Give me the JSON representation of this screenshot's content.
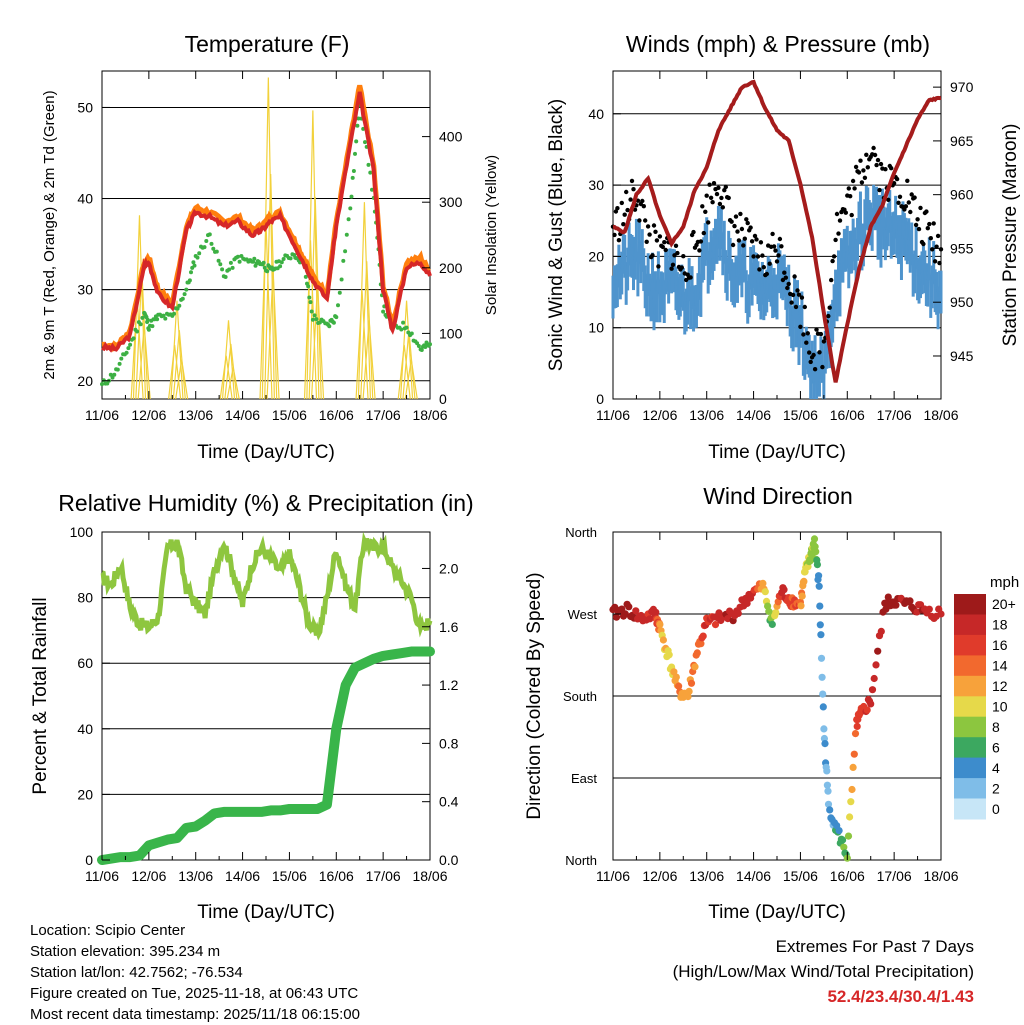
{
  "days": [
    "11/06",
    "12/06",
    "13/06",
    "14/06",
    "15/06",
    "16/06",
    "17/06",
    "18/06"
  ],
  "xlabel": "Time (Day/UTC)",
  "station": {
    "location": "Location: Scipio Center",
    "elevation": "Station elevation: 395.234 m",
    "latlon": "Station lat/lon: 42.7562; -76.534",
    "created": "Figure created on Tue, 2025-11-18, at 06:43 UTC",
    "recent": "Most recent data timestamp: 2025/11/18 06:15:00"
  },
  "extremes": {
    "title": "Extremes For Past 7 Days",
    "subtitle": "(High/Low/Max Wind/Total Precipitation)",
    "values": "52.4/23.4/30.4/1.43"
  },
  "colors": {
    "red": "#d62728",
    "orange": "#ff7f0e",
    "green": "#3cb043",
    "yellow": "#f2d13b",
    "blue": "#4f94cd",
    "black": "#000000",
    "maroon": "#a51c1c",
    "lightgreen": "#8ec63f",
    "darkgreen": "#39b54a"
  },
  "chart_data": [
    {
      "type": "line",
      "title": "Temperature (F)",
      "xlabel": "Time (Day/UTC)",
      "ylabel": "2m & 9m T (Red, Orange) & 2m Td (Green)",
      "y2label": "Solar Insolation (Yellow)",
      "ylim": [
        18,
        54
      ],
      "yticks": [
        20,
        30,
        40,
        50
      ],
      "y2lim": [
        0,
        500
      ],
      "y2ticks": [
        0,
        100,
        200,
        300,
        400
      ],
      "x": [
        0,
        0.3,
        0.6,
        0.9,
        1.0,
        1.2,
        1.5,
        1.8,
        2.0,
        2.3,
        2.6,
        2.9,
        3.2,
        3.4,
        3.6,
        3.8,
        4.1,
        4.3,
        4.5,
        4.8,
        5.0,
        5.3,
        5.5,
        5.8,
        6.0,
        6.2,
        6.5,
        6.8,
        7.0
      ],
      "series": [
        {
          "name": "2m T",
          "values": [
            23.7,
            23.5,
            25,
            32.5,
            33,
            29.5,
            28,
            36.5,
            38.5,
            38,
            37,
            37.5,
            36,
            36.5,
            37.5,
            38,
            35,
            33,
            31,
            29,
            37,
            46,
            51.5,
            43,
            30,
            25.5,
            32.5,
            33,
            31.5
          ]
        },
        {
          "name": "9m T",
          "values": [
            24,
            23.8,
            25.5,
            33,
            33.5,
            30,
            28.5,
            37,
            39,
            38.5,
            37.5,
            38,
            36.5,
            37,
            38,
            38.5,
            35.5,
            33.5,
            31.5,
            29.5,
            37.5,
            46.5,
            52.4,
            43.5,
            30.5,
            26,
            33,
            33.5,
            32
          ]
        },
        {
          "name": "2m Td",
          "values": [
            19.5,
            21,
            24,
            27.5,
            26,
            27,
            27,
            30,
            33.5,
            36,
            31.5,
            33.5,
            33,
            33,
            32,
            33,
            34,
            33,
            27,
            26,
            27,
            39,
            50.5,
            40,
            28,
            26,
            26,
            23.5,
            24
          ]
        }
      ],
      "solar": {
        "name": "Solar Insolation",
        "peaks": [
          [
            0.8,
            280
          ],
          [
            1.6,
            150
          ],
          [
            2.7,
            120
          ],
          [
            3.55,
            490
          ],
          [
            4.5,
            440
          ],
          [
            5.6,
            300
          ],
          [
            6.5,
            150
          ]
        ]
      }
    },
    {
      "type": "line",
      "title": "Winds (mph) & Pressure (mb)",
      "xlabel": "Time (Day/UTC)",
      "ylabel": "Sonic Wind & Gust (Blue, Black)",
      "y2label": "Station Pressure (Maroon)",
      "ylim": [
        0,
        46
      ],
      "yticks": [
        0,
        10,
        20,
        30,
        40
      ],
      "y2lim": [
        941,
        971.5
      ],
      "y2ticks": [
        945,
        950,
        955,
        960,
        965,
        970
      ],
      "x": [
        0,
        0.25,
        0.5,
        0.75,
        1.0,
        1.25,
        1.5,
        1.75,
        2.0,
        2.25,
        2.5,
        2.75,
        3.0,
        3.25,
        3.5,
        3.75,
        4.0,
        4.25,
        4.5,
        4.75,
        5.0,
        5.25,
        5.5,
        5.75,
        6.0,
        6.25,
        6.5,
        6.75,
        7.0
      ],
      "series": [
        {
          "name": "Sonic Wind",
          "values": [
            17,
            18,
            20,
            16,
            15,
            16,
            14,
            15,
            20,
            25,
            18,
            17,
            16,
            15,
            17,
            14,
            10,
            4,
            3,
            16,
            19,
            23,
            26,
            24,
            23,
            22,
            19,
            17,
            15
          ]
        },
        {
          "name": "Gust",
          "values": [
            24,
            26,
            29,
            23,
            20,
            21,
            18,
            21,
            27,
            31,
            25,
            23,
            21,
            19,
            22,
            17,
            13,
            7,
            7,
            24,
            27,
            31,
            36,
            31,
            30,
            29,
            25,
            23,
            21
          ]
        },
        {
          "name": "Pressure",
          "values": [
            957,
            956.5,
            960,
            961.5,
            958,
            955.5,
            957,
            960.5,
            962.5,
            966,
            968,
            970,
            970.5,
            968,
            966,
            965,
            961,
            956,
            949,
            942.5,
            948,
            953,
            957,
            959,
            962,
            964.5,
            967,
            968.8,
            969
          ]
        }
      ]
    },
    {
      "type": "line",
      "title": "Relative Humidity (%) & Precipitation (in)",
      "xlabel": "Time (Day/UTC)",
      "ylabel": "Percent & Total Rainfall",
      "ylim": [
        0,
        100
      ],
      "yticks": [
        0,
        20,
        40,
        60,
        80,
        100
      ],
      "y2lim": [
        0,
        2.25
      ],
      "y2ticks": [
        0.0,
        0.4,
        0.8,
        1.2,
        1.6,
        2.0
      ],
      "x": [
        0,
        0.2,
        0.4,
        0.6,
        0.8,
        1.0,
        1.2,
        1.4,
        1.6,
        1.8,
        2.0,
        2.2,
        2.4,
        2.6,
        2.8,
        3.0,
        3.2,
        3.4,
        3.6,
        3.8,
        4.0,
        4.2,
        4.4,
        4.6,
        4.8,
        5.0,
        5.2,
        5.4,
        5.6,
        5.8,
        6.0,
        6.2,
        6.4,
        6.6,
        6.8,
        7.0
      ],
      "series": [
        {
          "name": "Relative Humidity",
          "values": [
            86,
            84,
            90,
            77,
            72,
            71,
            74,
            95,
            97,
            83,
            78,
            75,
            88,
            97,
            88,
            78,
            90,
            95,
            92,
            88,
            93,
            84,
            73,
            68,
            80,
            95,
            84,
            77,
            98,
            95,
            96,
            89,
            85,
            80,
            70,
            73
          ]
        },
        {
          "name": "Total Precipitation",
          "values": [
            0,
            0.01,
            0.02,
            0.02,
            0.03,
            0.1,
            0.12,
            0.14,
            0.15,
            0.22,
            0.23,
            0.27,
            0.32,
            0.33,
            0.33,
            0.33,
            0.33,
            0.33,
            0.34,
            0.34,
            0.35,
            0.35,
            0.35,
            0.35,
            0.38,
            0.9,
            1.2,
            1.32,
            1.35,
            1.38,
            1.4,
            1.41,
            1.42,
            1.43,
            1.43,
            1.43
          ]
        }
      ]
    },
    {
      "type": "scatter",
      "title": "Wind Direction",
      "xlabel": "Time (Day/UTC)",
      "ylabel": "Direction (Colored By Speed)",
      "yticks": [
        "North",
        "East",
        "South",
        "West",
        "North"
      ],
      "ylim": [
        0,
        360
      ],
      "colorbar_title": "mph",
      "colorbar_labels": [
        "20+",
        "18",
        "16",
        "14",
        "12",
        "10",
        "8",
        "6",
        "4",
        "2",
        "0"
      ],
      "colorbar_colors": [
        "#9e1a1a",
        "#c62828",
        "#e03b2b",
        "#f2692e",
        "#f7a23b",
        "#e6d94a",
        "#8cc63f",
        "#3ca860",
        "#3d8ccc",
        "#7fbde8",
        "#c7e6f7"
      ],
      "x": [
        0,
        0.3,
        0.6,
        0.9,
        1.0,
        1.2,
        1.4,
        1.6,
        1.8,
        2.0,
        2.3,
        2.6,
        2.9,
        3.2,
        3.4,
        3.6,
        3.8,
        4.0,
        4.1,
        4.2,
        4.3,
        4.4,
        4.5,
        4.6,
        4.8,
        5.0,
        5.2,
        5.3,
        5.5,
        5.8,
        6.0,
        6.3,
        6.6,
        7.0
      ],
      "directions": [
        270,
        275,
        265,
        270,
        255,
        220,
        185,
        180,
        230,
        260,
        265,
        270,
        290,
        300,
        260,
        295,
        285,
        280,
        315,
        330,
        350,
        300,
        145,
        60,
        30,
        5,
        150,
        160,
        175,
        280,
        285,
        280,
        275,
        270
      ],
      "speeds": [
        20,
        20,
        17,
        18,
        12,
        10,
        13,
        12,
        14,
        17,
        18,
        19,
        18,
        12,
        6,
        18,
        16,
        14,
        10,
        9,
        8,
        4,
        3,
        2,
        5,
        7,
        16,
        16,
        18,
        20,
        20,
        19,
        19,
        18
      ]
    }
  ]
}
